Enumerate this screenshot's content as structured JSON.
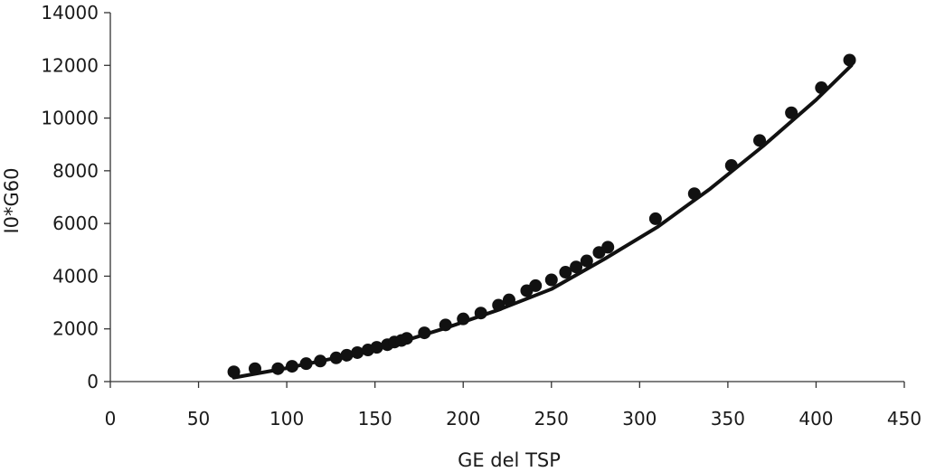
{
  "chart_data": {
    "type": "scatter",
    "xlabel": "GE del TSP",
    "ylabel": "I0*G60",
    "xlim": [
      0,
      450
    ],
    "ylim": [
      0,
      14000
    ],
    "x_ticks": [
      "0",
      "50",
      "100",
      "150",
      "200",
      "250",
      "300",
      "350",
      "400",
      "450"
    ],
    "y_ticks": [
      "0",
      "2000",
      "4000",
      "6000",
      "8000",
      "10000",
      "12000",
      "14000"
    ],
    "grid": false,
    "legend": "none",
    "series": [
      {
        "kind": "points",
        "color": "#111111",
        "x": [
          70,
          82,
          95,
          103,
          111,
          119,
          128,
          134,
          140,
          146,
          151,
          157,
          161,
          165,
          168,
          178,
          190,
          200,
          210,
          220,
          226,
          236,
          241,
          250,
          258,
          264,
          270,
          277,
          282,
          309,
          331,
          352,
          368,
          386,
          403,
          419
        ],
        "y": [
          370,
          490,
          490,
          580,
          680,
          780,
          900,
          1000,
          1100,
          1200,
          1300,
          1400,
          1500,
          1560,
          1640,
          1850,
          2150,
          2380,
          2600,
          2900,
          3100,
          3450,
          3640,
          3860,
          4150,
          4350,
          4580,
          4900,
          5100,
          6180,
          7130,
          8200,
          9150,
          10200,
          11150,
          12200
        ]
      },
      {
        "kind": "fit-line",
        "color": "#111111",
        "x": [
          70,
          100,
          130,
          160,
          190,
          220,
          250,
          280,
          310,
          340,
          370,
          400,
          420
        ],
        "y": [
          150,
          510,
          930,
          1410,
          2030,
          2720,
          3510,
          4650,
          5860,
          7320,
          8940,
          10690,
          12000
        ]
      }
    ]
  }
}
